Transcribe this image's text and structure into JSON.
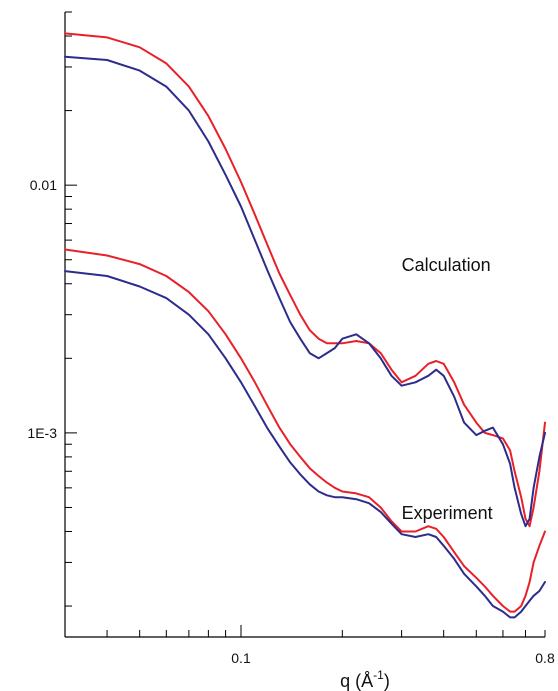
{
  "chart_data": {
    "type": "line",
    "title": "",
    "xlabel_main": "q (Å",
    "xlabel_sup": "-1",
    "xlabel_close": ")",
    "ylabel": "",
    "x_scale": "log",
    "y_scale": "log",
    "xlim": [
      0.03,
      0.8
    ],
    "ylim": [
      0.00015,
      0.05
    ],
    "x_ticks": [
      {
        "value": 0.1,
        "label": "0.1"
      },
      {
        "value": 0.8,
        "label": "0.8"
      }
    ],
    "y_ticks": [
      {
        "value": 0.01,
        "label": "0.01"
      },
      {
        "value": 0.001,
        "label": "1E-3"
      }
    ],
    "grid": false,
    "legend": "none",
    "annotations": [
      {
        "text": "Calculation",
        "x": 0.3,
        "y": 0.0045
      },
      {
        "text": "Experiment",
        "x": 0.3,
        "y": 0.00045
      }
    ],
    "series": [
      {
        "group": "Calculation",
        "color": "#e8202a",
        "x": [
          0.03,
          0.04,
          0.05,
          0.06,
          0.07,
          0.08,
          0.09,
          0.1,
          0.11,
          0.12,
          0.13,
          0.14,
          0.15,
          0.16,
          0.17,
          0.18,
          0.19,
          0.2,
          0.22,
          0.24,
          0.26,
          0.28,
          0.3,
          0.33,
          0.36,
          0.38,
          0.4,
          0.43,
          0.46,
          0.5,
          0.53,
          0.56,
          0.6,
          0.63,
          0.65,
          0.68,
          0.7,
          0.72,
          0.74,
          0.77,
          0.8
        ],
        "y": [
          0.041,
          0.0395,
          0.036,
          0.031,
          0.025,
          0.019,
          0.014,
          0.0103,
          0.0076,
          0.0057,
          0.0044,
          0.0036,
          0.003,
          0.0026,
          0.0024,
          0.0023,
          0.0023,
          0.0023,
          0.00235,
          0.0023,
          0.0021,
          0.0018,
          0.0016,
          0.0017,
          0.0019,
          0.00195,
          0.0019,
          0.0016,
          0.0013,
          0.0011,
          0.001,
          0.00098,
          0.00095,
          0.00085,
          0.0007,
          0.00055,
          0.00045,
          0.00042,
          0.0005,
          0.0007,
          0.0011
        ]
      },
      {
        "group": "Calculation",
        "color": "#2c2c8c",
        "x": [
          0.03,
          0.04,
          0.05,
          0.06,
          0.07,
          0.08,
          0.09,
          0.1,
          0.11,
          0.12,
          0.13,
          0.14,
          0.15,
          0.16,
          0.17,
          0.18,
          0.19,
          0.2,
          0.22,
          0.24,
          0.26,
          0.28,
          0.3,
          0.33,
          0.36,
          0.38,
          0.4,
          0.43,
          0.46,
          0.5,
          0.53,
          0.56,
          0.6,
          0.63,
          0.65,
          0.68,
          0.7,
          0.72,
          0.74,
          0.77,
          0.8
        ],
        "y": [
          0.033,
          0.032,
          0.029,
          0.025,
          0.02,
          0.015,
          0.011,
          0.0082,
          0.006,
          0.0045,
          0.0035,
          0.0028,
          0.0024,
          0.0021,
          0.002,
          0.0021,
          0.0022,
          0.0024,
          0.0025,
          0.0023,
          0.002,
          0.0017,
          0.00155,
          0.0016,
          0.0017,
          0.0018,
          0.0017,
          0.0014,
          0.0011,
          0.00098,
          0.00102,
          0.00105,
          0.0009,
          0.00075,
          0.0006,
          0.00047,
          0.00042,
          0.00045,
          0.0006,
          0.0008,
          0.001
        ]
      },
      {
        "group": "Experiment",
        "color": "#e8202a",
        "x": [
          0.03,
          0.04,
          0.05,
          0.06,
          0.07,
          0.08,
          0.09,
          0.1,
          0.11,
          0.12,
          0.13,
          0.14,
          0.15,
          0.16,
          0.17,
          0.18,
          0.19,
          0.2,
          0.22,
          0.24,
          0.26,
          0.28,
          0.3,
          0.33,
          0.36,
          0.38,
          0.4,
          0.43,
          0.46,
          0.5,
          0.53,
          0.56,
          0.6,
          0.63,
          0.65,
          0.68,
          0.7,
          0.72,
          0.74,
          0.77,
          0.8
        ],
        "y": [
          0.0055,
          0.0052,
          0.0048,
          0.0043,
          0.0037,
          0.0031,
          0.0025,
          0.002,
          0.0016,
          0.00128,
          0.00105,
          0.0009,
          0.0008,
          0.00072,
          0.00067,
          0.00063,
          0.0006,
          0.00058,
          0.00057,
          0.00055,
          0.0005,
          0.00044,
          0.0004,
          0.0004,
          0.00042,
          0.00041,
          0.00038,
          0.00033,
          0.00029,
          0.00026,
          0.00024,
          0.00022,
          0.0002,
          0.00019,
          0.00019,
          0.0002,
          0.00022,
          0.00025,
          0.0003,
          0.00035,
          0.0004
        ]
      },
      {
        "group": "Experiment",
        "color": "#2c2c8c",
        "x": [
          0.03,
          0.04,
          0.05,
          0.06,
          0.07,
          0.08,
          0.09,
          0.1,
          0.11,
          0.12,
          0.13,
          0.14,
          0.15,
          0.16,
          0.17,
          0.18,
          0.19,
          0.2,
          0.22,
          0.24,
          0.26,
          0.28,
          0.3,
          0.33,
          0.36,
          0.38,
          0.4,
          0.43,
          0.46,
          0.5,
          0.53,
          0.56,
          0.6,
          0.63,
          0.65,
          0.68,
          0.7,
          0.72,
          0.74,
          0.77,
          0.8
        ],
        "y": [
          0.0045,
          0.0043,
          0.0039,
          0.0035,
          0.003,
          0.0025,
          0.002,
          0.0016,
          0.00128,
          0.00104,
          0.00088,
          0.00076,
          0.00068,
          0.00062,
          0.00058,
          0.00056,
          0.00055,
          0.00055,
          0.00054,
          0.00052,
          0.00048,
          0.00043,
          0.00039,
          0.00038,
          0.00039,
          0.00038,
          0.00035,
          0.00031,
          0.00027,
          0.00024,
          0.00022,
          0.0002,
          0.00019,
          0.00018,
          0.00018,
          0.00019,
          0.0002,
          0.00021,
          0.00022,
          0.00023,
          0.00025
        ]
      }
    ]
  }
}
